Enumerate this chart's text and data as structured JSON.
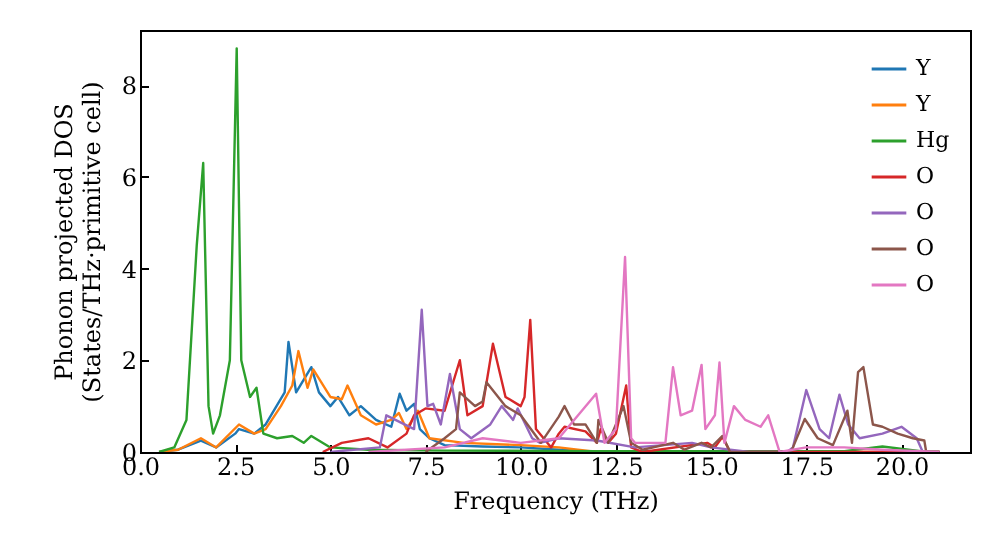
{
  "chart_data": {
    "type": "line",
    "xlabel": "Frequency (THz)",
    "ylabel": "Phonon projected DOS\n(States/THz·primitive cell)",
    "xlim": [
      0,
      21.8
    ],
    "ylim": [
      0,
      9.2
    ],
    "xticks": [
      {
        "value": 0,
        "label": "0.0"
      },
      {
        "value": 2.5,
        "label": "2.5"
      },
      {
        "value": 5,
        "label": "5.0"
      },
      {
        "value": 7.5,
        "label": "7.5"
      },
      {
        "value": 10,
        "label": "10.0"
      },
      {
        "value": 12.5,
        "label": "12.5"
      },
      {
        "value": 15,
        "label": "15.0"
      },
      {
        "value": 17.5,
        "label": "17.5"
      },
      {
        "value": 20,
        "label": "20.0"
      }
    ],
    "yticks": [
      0,
      2,
      4,
      6,
      8
    ],
    "grid": false,
    "legend": "top right",
    "line_style": "solid",
    "marker": "none",
    "series": [
      {
        "name": "Y",
        "color": "#1f77b4",
        "x": [
          0.5,
          1.0,
          1.6,
          2.0,
          2.5,
          2.6,
          3.0,
          3.3,
          3.8,
          3.9,
          4.1,
          4.5,
          4.7,
          5.0,
          5.2,
          5.5,
          5.8,
          6.2,
          6.6,
          6.82,
          7.0,
          7.2,
          7.35,
          7.6,
          8.0,
          9.0,
          10.0,
          11.0,
          12.0
        ],
        "values": [
          0,
          0.05,
          0.25,
          0.1,
          0.4,
          0.5,
          0.4,
          0.6,
          1.3,
          2.4,
          1.3,
          1.85,
          1.3,
          1.0,
          1.2,
          0.8,
          1.0,
          0.7,
          0.55,
          1.27,
          0.9,
          1.05,
          0.5,
          0.3,
          0.15,
          0.12,
          0.1,
          0.05,
          0
        ]
      },
      {
        "name": "Y",
        "color": "#ff7f0e",
        "x": [
          0.5,
          1.0,
          1.6,
          2.0,
          2.6,
          3.0,
          3.3,
          3.7,
          4.0,
          4.16,
          4.4,
          4.55,
          5.0,
          5.3,
          5.45,
          5.8,
          6.2,
          6.6,
          6.8,
          7.0,
          7.3,
          7.6,
          8.5,
          10.0,
          11.0,
          12.0,
          21.0
        ],
        "values": [
          0,
          0.05,
          0.3,
          0.1,
          0.6,
          0.4,
          0.5,
          1.0,
          1.45,
          2.2,
          1.4,
          1.8,
          1.2,
          1.15,
          1.45,
          0.8,
          0.6,
          0.7,
          0.85,
          0.5,
          0.9,
          0.3,
          0.2,
          0.15,
          0.1,
          0,
          0
        ]
      },
      {
        "name": "Hg",
        "color": "#2ca02c",
        "x": [
          0.5,
          0.9,
          1.22,
          1.49,
          1.66,
          1.8,
          1.92,
          2.1,
          2.36,
          2.54,
          2.66,
          2.89,
          3.06,
          3.24,
          3.6,
          4.0,
          4.3,
          4.5,
          5.0,
          6.0,
          8.0,
          12.0,
          18.5,
          19.5,
          20.5,
          21.0
        ],
        "values": [
          0,
          0.1,
          0.7,
          4.5,
          6.3,
          1.0,
          0.4,
          0.8,
          2.0,
          8.8,
          2.0,
          1.2,
          1.4,
          0.4,
          0.3,
          0.35,
          0.2,
          0.35,
          0.1,
          0.05,
          0.03,
          0.02,
          0.02,
          0.12,
          0.02,
          0
        ]
      },
      {
        "name": "O",
        "color": "#d62728",
        "x": [
          4.8,
          5.3,
          6.0,
          6.5,
          7.0,
          7.2,
          7.5,
          8.0,
          8.4,
          8.6,
          9.0,
          9.27,
          9.6,
          10.0,
          10.1,
          10.25,
          10.4,
          10.8,
          11.0,
          11.15,
          11.7,
          12.0,
          12.1,
          12.3,
          12.5,
          12.77,
          12.9,
          13.2,
          14.9,
          15.1,
          15.3,
          15.5,
          16.5,
          21.0
        ],
        "values": [
          0,
          0.2,
          0.3,
          0.1,
          0.4,
          0.8,
          0.95,
          0.9,
          2.0,
          0.8,
          1.0,
          2.36,
          1.2,
          1.0,
          1.2,
          2.88,
          0.5,
          0.1,
          0.4,
          0.55,
          0.45,
          0.2,
          0.5,
          0.2,
          0.4,
          1.45,
          0.1,
          0,
          0.2,
          0.1,
          0.33,
          0,
          0,
          0
        ]
      },
      {
        "name": "O",
        "color": "#9467bd",
        "x": [
          5.0,
          6.3,
          6.47,
          7.2,
          7.4,
          7.55,
          7.7,
          7.9,
          8.14,
          8.4,
          8.7,
          9.2,
          9.5,
          9.8,
          9.92,
          10.3,
          10.5,
          11.0,
          12.0,
          13.0,
          14.5,
          15.0,
          16.0,
          17.0,
          17.15,
          17.5,
          17.85,
          18.1,
          18.37,
          18.6,
          18.9,
          19.5,
          20.0,
          20.4,
          20.56,
          21.0
        ],
        "values": [
          0,
          0.1,
          0.8,
          0.5,
          3.1,
          1.0,
          1.05,
          0.6,
          1.7,
          0.5,
          0.3,
          0.6,
          1.0,
          0.7,
          0.95,
          0.3,
          0.2,
          0.3,
          0.25,
          0.1,
          0.2,
          0.1,
          0,
          0,
          0.1,
          1.35,
          0.5,
          0.3,
          1.25,
          0.6,
          0.3,
          0.4,
          0.55,
          0.3,
          0,
          0
        ]
      },
      {
        "name": "O",
        "color": "#8c564b",
        "x": [
          7.5,
          8.0,
          8.3,
          8.4,
          8.8,
          9.0,
          9.1,
          9.6,
          10.0,
          10.53,
          11.0,
          11.15,
          11.4,
          11.7,
          12.0,
          12.04,
          12.3,
          12.5,
          12.7,
          12.9,
          13.2,
          14.0,
          14.3,
          14.75,
          15.0,
          15.3,
          15.5,
          17.1,
          17.15,
          17.46,
          17.8,
          18.2,
          18.58,
          18.7,
          18.86,
          19.0,
          19.25,
          19.5,
          19.9,
          20.3,
          20.6,
          20.65,
          21.0
        ],
        "values": [
          0,
          0.3,
          0.5,
          1.3,
          1.0,
          1.1,
          1.52,
          1.0,
          0.8,
          0.2,
          0.77,
          1.0,
          0.6,
          0.6,
          0.2,
          0.7,
          0.2,
          0.6,
          1.0,
          0.2,
          0.05,
          0.2,
          0.05,
          0.2,
          0.1,
          0.35,
          0,
          0,
          0.1,
          0.72,
          0.3,
          0.15,
          0.9,
          0.2,
          1.74,
          1.85,
          0.6,
          0.55,
          0.4,
          0.3,
          0.25,
          0,
          0
        ]
      },
      {
        "name": "O",
        "color": "#e377c2",
        "x": [
          6.0,
          8.0,
          9.0,
          10.0,
          11.0,
          11.98,
          12.2,
          12.5,
          12.74,
          12.9,
          13.0,
          13.8,
          14.0,
          14.2,
          14.5,
          14.75,
          14.85,
          15.1,
          15.22,
          15.35,
          15.6,
          15.9,
          16.3,
          16.5,
          16.8,
          17.5,
          18.5,
          19.5,
          21.0
        ],
        "values": [
          0,
          0.1,
          0.3,
          0.2,
          0.3,
          1.27,
          0.2,
          0.5,
          4.25,
          0.3,
          0.2,
          0.2,
          1.85,
          0.8,
          0.9,
          1.9,
          0.5,
          0.8,
          1.95,
          0.2,
          1.0,
          0.7,
          0.55,
          0.8,
          0,
          0.1,
          0.1,
          0.05,
          0
        ]
      }
    ]
  }
}
